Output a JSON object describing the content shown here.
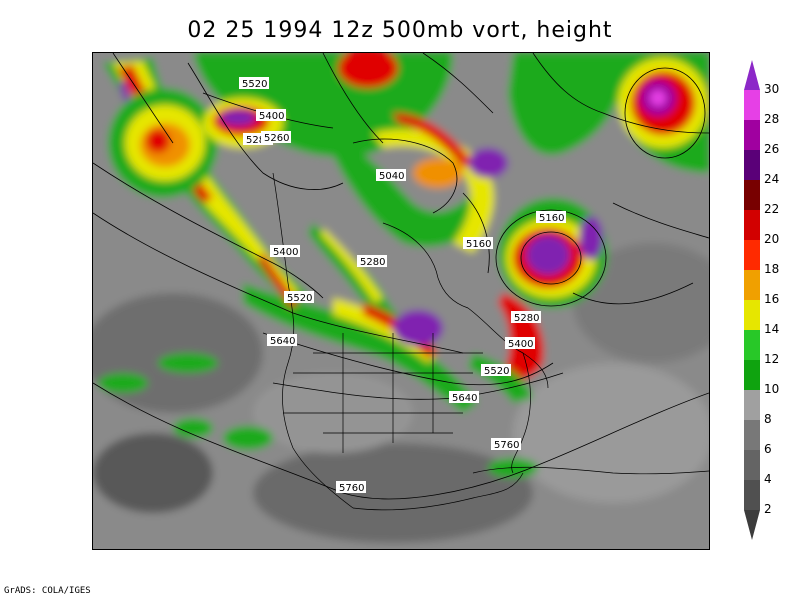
{
  "title": "02  25  1994  12z  500mb  vort,  height",
  "credit": "GrADS: COLA/IGES",
  "colorbar": {
    "ticks": [
      "2",
      "4",
      "6",
      "8",
      "10",
      "12",
      "14",
      "16",
      "18",
      "20",
      "22",
      "24",
      "26",
      "28",
      "30"
    ],
    "colors": [
      "#3c3c3c",
      "#505050",
      "#646464",
      "#787878",
      "#a0a0a0",
      "#0fa30f",
      "#28c828",
      "#e6e600",
      "#f0a000",
      "#ff2a00",
      "#d20000",
      "#780000",
      "#5a0078",
      "#a000a0",
      "#e640e6",
      "#8c28c8"
    ]
  },
  "contour_labels": [
    {
      "text": "5520",
      "id": "lbl-5520-a"
    },
    {
      "text": "5400",
      "id": "lbl-5400-a"
    },
    {
      "text": "5280",
      "id": "lbl-5280-a"
    },
    {
      "text": "5260",
      "id": "lbl-5260-a"
    },
    {
      "text": "5040",
      "id": "lbl-5040-a"
    },
    {
      "text": "5160",
      "id": "lbl-5160-a"
    },
    {
      "text": "5160",
      "id": "lbl-5160-b"
    },
    {
      "text": "5400",
      "id": "lbl-5400-b"
    },
    {
      "text": "5280",
      "id": "lbl-5280-b"
    },
    {
      "text": "5520",
      "id": "lbl-5520-b"
    },
    {
      "text": "5640",
      "id": "lbl-5640-a"
    },
    {
      "text": "5280",
      "id": "lbl-5280-c"
    },
    {
      "text": "5400",
      "id": "lbl-5400-c"
    },
    {
      "text": "5520",
      "id": "lbl-5520-c"
    },
    {
      "text": "5640",
      "id": "lbl-5640-b"
    },
    {
      "text": "5760",
      "id": "lbl-5760-a"
    },
    {
      "text": "5760",
      "id": "lbl-5760-b"
    }
  ]
}
